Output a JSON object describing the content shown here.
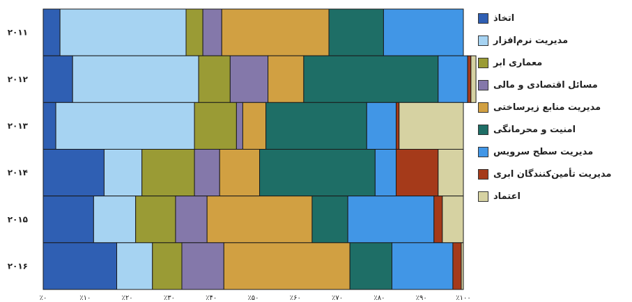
{
  "chart_data": {
    "type": "bar",
    "orientation": "horizontal",
    "stacked": "percent",
    "categories": [
      "۲۰۱۱",
      "۲۰۱۲",
      "۲۰۱۳",
      "۲۰۱۴",
      "۲۰۱۵",
      "۲۰۱۶"
    ],
    "x_ticks": [
      "٪۰",
      "٪۱۰",
      "٪۲۰",
      "٪۳۰",
      "٪۴۰",
      "٪۵۰",
      "٪۶۰",
      "٪۷۰",
      "٪۸۰",
      "٪۹۰",
      "٪۱۰۰"
    ],
    "xlim": [
      0,
      100
    ],
    "grid": false,
    "legend_position": "right",
    "series": [
      {
        "name": "اتخاذ",
        "color": "#2f5fb3",
        "values": [
          4,
          7,
          3,
          14.5,
          12,
          17.5
        ]
      },
      {
        "name": "مدیریت نرم‌افزار",
        "color": "#a6d3f2",
        "values": [
          30,
          30,
          33,
          9,
          10,
          8.5
        ]
      },
      {
        "name": "معماری ابر",
        "color": "#9a9b35",
        "values": [
          4,
          7.5,
          10,
          12.5,
          9.5,
          7
        ]
      },
      {
        "name": "مسائل اقتصادی و مالی",
        "color": "#8478aa",
        "values": [
          4.5,
          9,
          1.5,
          6,
          7.5,
          10
        ]
      },
      {
        "name": "مدیریت منابع زیرساختی",
        "color": "#d1a042",
        "values": [
          25.5,
          8.5,
          5.5,
          9.5,
          25,
          30
        ]
      },
      {
        "name": "امنیت و محرمانگی",
        "color": "#1e6e66",
        "values": [
          13,
          32,
          24,
          27.5,
          8.5,
          10
        ]
      },
      {
        "name": "مدیریت سطح سرویس",
        "color": "#4196e6",
        "values": [
          19,
          7,
          7,
          5,
          20.5,
          14.5
        ]
      },
      {
        "name": "مدیریت تأمین‌کنندگان ابری",
        "color": "#a53a1a",
        "values": [
          0,
          0.8,
          0.7,
          10,
          2,
          2
        ]
      },
      {
        "name": "اعتماد",
        "color": "#d6d2a2",
        "values": [
          0,
          1.2,
          15.3,
          6,
          5,
          0.5
        ]
      }
    ]
  }
}
